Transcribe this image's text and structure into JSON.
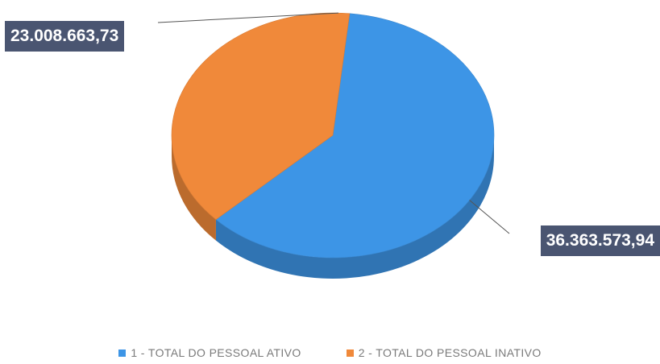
{
  "chart_data": {
    "type": "pie",
    "title": "",
    "categories": [
      "1 - TOTAL DO PESSOAL ATIVO",
      "2 - TOTAL DO PESSOAL INATIVO"
    ],
    "values": [
      36363573.94,
      23008663.73
    ],
    "data_labels": [
      "36.363.573,94",
      "23.008.663,73"
    ],
    "colors": [
      "#3d95e6",
      "#f0893a"
    ],
    "legend_position": "bottom",
    "style": "3d"
  }
}
